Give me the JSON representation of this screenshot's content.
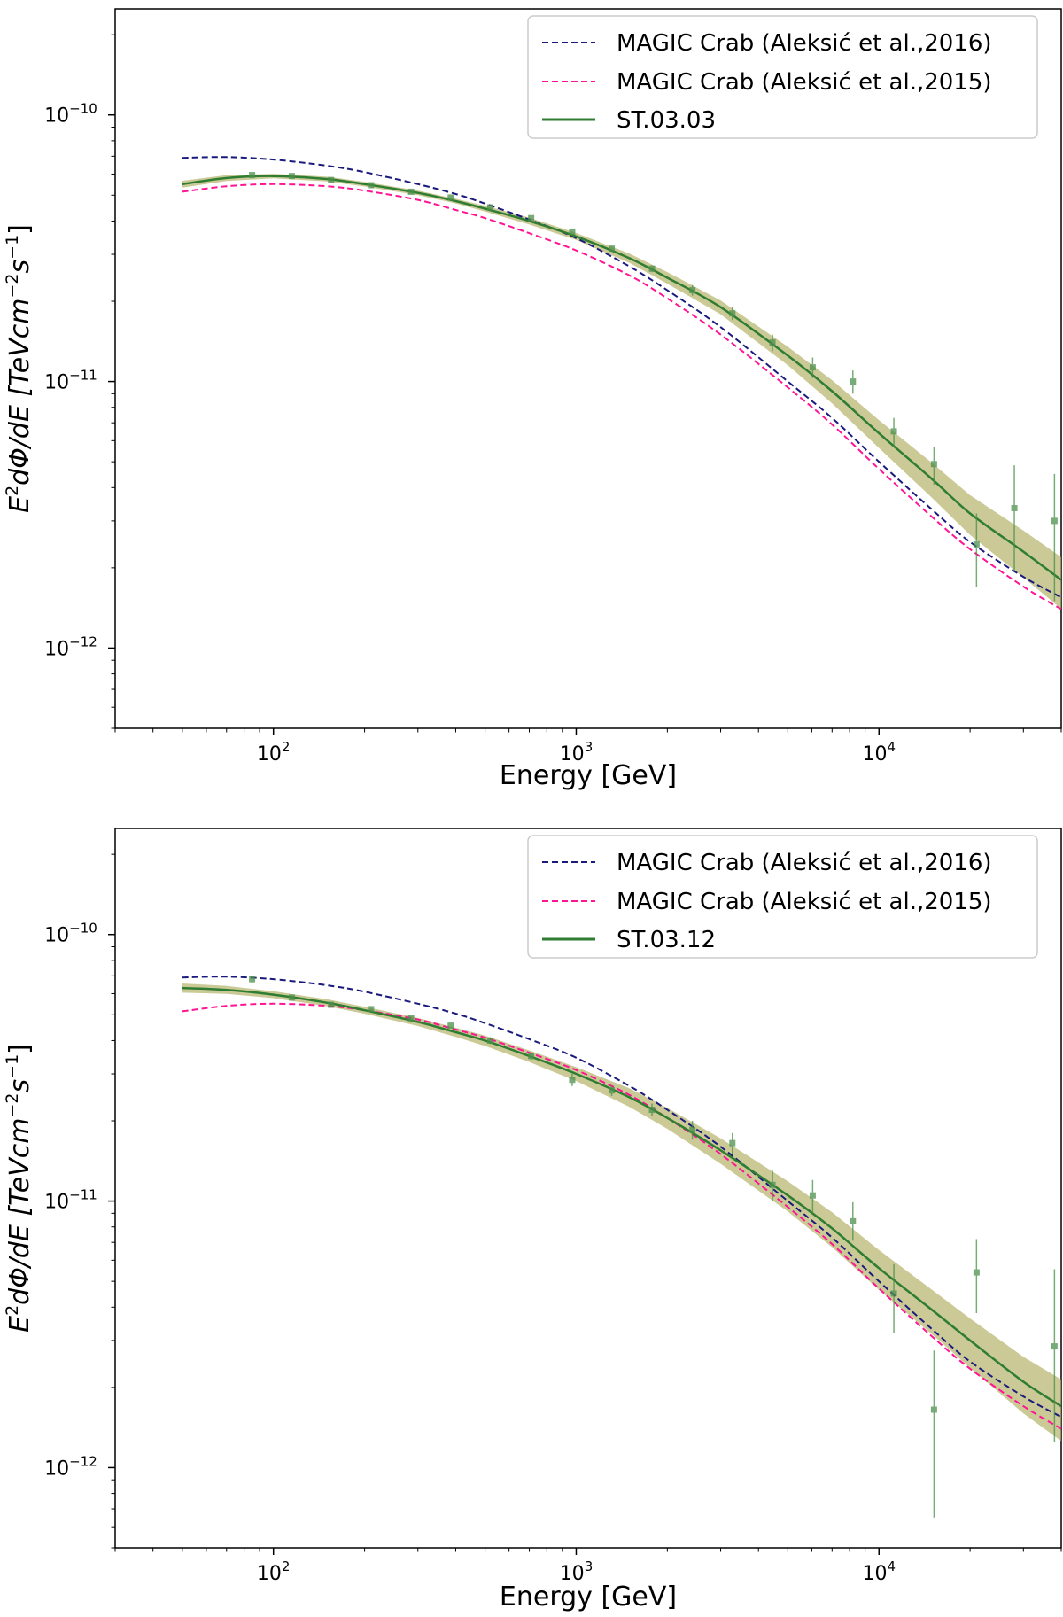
{
  "chart_data": [
    {
      "type": "line",
      "xscale": "log",
      "yscale": "log",
      "xlim": [
        30,
        40000
      ],
      "ylim": [
        5e-13,
        2.5e-10
      ],
      "xlabel": "Energy [GeV]",
      "ylabel_base": "dΦ/dE [TeVcm",
      "ylabel_parts": {
        "e": "E",
        "exp2": "2",
        "exp_m2": "−2",
        "s": "s",
        "exp_m1": "−1",
        "close": "]"
      },
      "x_ticks": [
        {
          "base": "10",
          "exp": "2",
          "value": 100
        },
        {
          "base": "10",
          "exp": "3",
          "value": 1000
        },
        {
          "base": "10",
          "exp": "4",
          "value": 10000
        }
      ],
      "y_ticks": [
        {
          "base": "10",
          "exp": "−10",
          "value": 1e-10
        },
        {
          "base": "10",
          "exp": "−11",
          "value": 1e-11
        },
        {
          "base": "10",
          "exp": "−12",
          "value": 1e-12
        }
      ],
      "legend": {
        "position": "top-right",
        "entries": [
          "MAGIC Crab (Aleksić et al.,2016)",
          "MAGIC Crab (Aleksić et al.,2015)",
          "ST.03.03"
        ]
      },
      "colors": {
        "magic2016": "#1a1a7e",
        "magic2015": "#ff1493",
        "model": "#2e7d32",
        "band": "#b5b36a",
        "points": "#4a8f4a"
      },
      "series": [
        {
          "name": "MAGIC Crab (Aleksić et al.,2016)",
          "style": "dashed",
          "color_key": "magic2016",
          "x": [
            50,
            70,
            100,
            150,
            200,
            300,
            400,
            500,
            700,
            1000,
            1500,
            2000,
            3000,
            5000,
            7000,
            10000,
            15000,
            20000,
            30000,
            40000
          ],
          "y": [
            6.9e-11,
            6.95e-11,
            6.8e-11,
            6.45e-11,
            6.1e-11,
            5.5e-11,
            5.05e-11,
            4.65e-11,
            4.05e-11,
            3.45e-11,
            2.7e-11,
            2.2e-11,
            1.6e-11,
            1e-11,
            7.3e-12,
            5e-12,
            3.3e-12,
            2.5e-12,
            1.85e-12,
            1.55e-12
          ]
        },
        {
          "name": "MAGIC Crab (Aleksić et al.,2015)",
          "style": "dashed",
          "color_key": "magic2015",
          "x": [
            50,
            70,
            100,
            150,
            200,
            300,
            400,
            500,
            700,
            1000,
            1500,
            2000,
            3000,
            5000,
            7000,
            10000,
            15000,
            20000,
            30000,
            40000
          ],
          "y": [
            5.15e-11,
            5.4e-11,
            5.5e-11,
            5.4e-11,
            5.2e-11,
            4.8e-11,
            4.4e-11,
            4.1e-11,
            3.6e-11,
            3.1e-11,
            2.5e-11,
            2.05e-11,
            1.5e-11,
            9.5e-12,
            6.9e-12,
            4.7e-12,
            3.1e-12,
            2.35e-12,
            1.7e-12,
            1.4e-12
          ]
        },
        {
          "name": "ST.03.03",
          "style": "solid",
          "color_key": "model",
          "x": [
            50,
            70,
            100,
            150,
            200,
            300,
            400,
            500,
            700,
            1000,
            1500,
            2000,
            3000,
            5000,
            7000,
            10000,
            15000,
            20000,
            30000,
            40000
          ],
          "y": [
            5.5e-11,
            5.8e-11,
            5.9e-11,
            5.75e-11,
            5.5e-11,
            5.1e-11,
            4.75e-11,
            4.45e-11,
            4e-11,
            3.5e-11,
            2.9e-11,
            2.45e-11,
            1.9e-11,
            1.25e-11,
            9.2e-12,
            6.4e-12,
            4.3e-12,
            3.2e-12,
            2.3e-12,
            1.8e-12
          ],
          "band_rel": [
            0.03,
            0.025,
            0.02,
            0.02,
            0.02,
            0.02,
            0.02,
            0.025,
            0.03,
            0.03,
            0.04,
            0.05,
            0.06,
            0.08,
            0.1,
            0.12,
            0.15,
            0.17,
            0.2,
            0.22
          ]
        }
      ],
      "points": [
        {
          "x": 85,
          "y": 5.95e-11,
          "yerr": [
            1e-12,
            1e-12
          ]
        },
        {
          "x": 115,
          "y": 5.9e-11,
          "yerr": [
            8e-13,
            8e-13
          ]
        },
        {
          "x": 155,
          "y": 5.7e-11,
          "yerr": [
            8e-13,
            8e-13
          ]
        },
        {
          "x": 210,
          "y": 5.45e-11,
          "yerr": [
            8e-13,
            8e-13
          ]
        },
        {
          "x": 285,
          "y": 5.15e-11,
          "yerr": [
            8e-13,
            8e-13
          ]
        },
        {
          "x": 385,
          "y": 4.9e-11,
          "yerr": [
            8e-13,
            8e-13
          ]
        },
        {
          "x": 520,
          "y": 4.5e-11,
          "yerr": [
            8e-13,
            8e-13
          ]
        },
        {
          "x": 710,
          "y": 4.1e-11,
          "yerr": [
            1e-12,
            1e-12
          ]
        },
        {
          "x": 970,
          "y": 3.65e-11,
          "yerr": [
            8e-13,
            8e-13
          ]
        },
        {
          "x": 1310,
          "y": 3.15e-11,
          "yerr": [
            8e-13,
            8e-13
          ]
        },
        {
          "x": 1780,
          "y": 2.65e-11,
          "yerr": [
            8e-13,
            8e-13
          ]
        },
        {
          "x": 2420,
          "y": 2.2e-11,
          "yerr": [
            1e-12,
            1e-12
          ]
        },
        {
          "x": 3280,
          "y": 1.8e-11,
          "yerr": [
            1e-12,
            1e-12
          ]
        },
        {
          "x": 4450,
          "y": 1.4e-11,
          "yerr": [
            1e-12,
            1e-12
          ]
        },
        {
          "x": 6040,
          "y": 1.13e-11,
          "yerr": [
            1e-12,
            1e-12
          ]
        },
        {
          "x": 8200,
          "y": 1e-11,
          "yerr": [
            1e-12,
            1e-12
          ]
        },
        {
          "x": 11200,
          "y": 6.5e-12,
          "yerr": [
            8e-13,
            8e-13
          ]
        },
        {
          "x": 15200,
          "y": 4.9e-12,
          "yerr": [
            8e-13,
            8e-13
          ]
        },
        {
          "x": 21000,
          "y": 2.45e-12,
          "yerr": [
            7.5e-13,
            7.5e-13
          ]
        },
        {
          "x": 28000,
          "y": 3.35e-12,
          "yerr": [
            1.4e-12,
            1.5e-12
          ]
        },
        {
          "x": 38000,
          "y": 3e-12,
          "yerr": [
            1.5e-12,
            1.5e-12
          ]
        }
      ]
    },
    {
      "type": "line",
      "xscale": "log",
      "yscale": "log",
      "xlim": [
        30,
        40000
      ],
      "ylim": [
        5e-13,
        2.5e-10
      ],
      "xlabel": "Energy [GeV]",
      "ylabel_base": "dΦ/dE [TeVcm",
      "ylabel_parts": {
        "e": "E",
        "exp2": "2",
        "exp_m2": "−2",
        "s": "s",
        "exp_m1": "−1",
        "close": "]"
      },
      "x_ticks": [
        {
          "base": "10",
          "exp": "2",
          "value": 100
        },
        {
          "base": "10",
          "exp": "3",
          "value": 1000
        },
        {
          "base": "10",
          "exp": "4",
          "value": 10000
        }
      ],
      "y_ticks": [
        {
          "base": "10",
          "exp": "−10",
          "value": 1e-10
        },
        {
          "base": "10",
          "exp": "−11",
          "value": 1e-11
        },
        {
          "base": "10",
          "exp": "−12",
          "value": 1e-12
        }
      ],
      "legend": {
        "position": "top-right",
        "entries": [
          "MAGIC Crab (Aleksić et al.,2016)",
          "MAGIC Crab (Aleksić et al.,2015)",
          "ST.03.12"
        ]
      },
      "colors": {
        "magic2016": "#1a1a7e",
        "magic2015": "#ff1493",
        "model": "#2e7d32",
        "band": "#b5b36a",
        "points": "#4a8f4a"
      },
      "series": [
        {
          "name": "MAGIC Crab (Aleksić et al.,2016)",
          "style": "dashed",
          "color_key": "magic2016",
          "x": [
            50,
            70,
            100,
            150,
            200,
            300,
            400,
            500,
            700,
            1000,
            1500,
            2000,
            3000,
            5000,
            7000,
            10000,
            15000,
            20000,
            30000,
            40000
          ],
          "y": [
            6.9e-11,
            6.95e-11,
            6.8e-11,
            6.45e-11,
            6.1e-11,
            5.5e-11,
            5.05e-11,
            4.65e-11,
            4.05e-11,
            3.45e-11,
            2.7e-11,
            2.2e-11,
            1.6e-11,
            1e-11,
            7.3e-12,
            5e-12,
            3.3e-12,
            2.5e-12,
            1.85e-12,
            1.55e-12
          ]
        },
        {
          "name": "MAGIC Crab (Aleksić et al.,2015)",
          "style": "dashed",
          "color_key": "magic2015",
          "x": [
            50,
            70,
            100,
            150,
            200,
            300,
            400,
            500,
            700,
            1000,
            1500,
            2000,
            3000,
            5000,
            7000,
            10000,
            15000,
            20000,
            30000,
            40000
          ],
          "y": [
            5.15e-11,
            5.4e-11,
            5.5e-11,
            5.4e-11,
            5.2e-11,
            4.8e-11,
            4.4e-11,
            4.1e-11,
            3.6e-11,
            3.1e-11,
            2.5e-11,
            2.05e-11,
            1.5e-11,
            9.5e-12,
            6.9e-12,
            4.7e-12,
            3.1e-12,
            2.35e-12,
            1.7e-12,
            1.4e-12
          ]
        },
        {
          "name": "ST.03.12",
          "style": "solid",
          "color_key": "model",
          "x": [
            50,
            70,
            100,
            150,
            200,
            300,
            400,
            500,
            700,
            1000,
            1500,
            2000,
            3000,
            5000,
            7000,
            10000,
            15000,
            20000,
            30000,
            40000
          ],
          "y": [
            6.3e-11,
            6.2e-11,
            5.95e-11,
            5.55e-11,
            5.2e-11,
            4.7e-11,
            4.3e-11,
            4e-11,
            3.5e-11,
            3e-11,
            2.45e-11,
            2.05e-11,
            1.55e-11,
            1.05e-11,
            7.9e-12,
            5.6e-12,
            3.9e-12,
            3e-12,
            2.1e-12,
            1.7e-12
          ],
          "band_rel": [
            0.04,
            0.035,
            0.03,
            0.03,
            0.03,
            0.035,
            0.04,
            0.045,
            0.05,
            0.06,
            0.08,
            0.09,
            0.11,
            0.13,
            0.15,
            0.17,
            0.19,
            0.21,
            0.24,
            0.26
          ]
        }
      ],
      "points": [
        {
          "x": 85,
          "y": 6.8e-11,
          "yerr": [
            2e-12,
            2e-12
          ]
        },
        {
          "x": 115,
          "y": 5.8e-11,
          "yerr": [
            1.5e-12,
            1.5e-12
          ]
        },
        {
          "x": 155,
          "y": 5.45e-11,
          "yerr": [
            1.2e-12,
            1.2e-12
          ]
        },
        {
          "x": 210,
          "y": 5.25e-11,
          "yerr": [
            1.2e-12,
            1.2e-12
          ]
        },
        {
          "x": 285,
          "y": 4.85e-11,
          "yerr": [
            1.2e-12,
            1.2e-12
          ]
        },
        {
          "x": 385,
          "y": 4.55e-11,
          "yerr": [
            1.2e-12,
            1.2e-12
          ]
        },
        {
          "x": 520,
          "y": 4e-11,
          "yerr": [
            1.2e-12,
            1.2e-12
          ]
        },
        {
          "x": 710,
          "y": 3.5e-11,
          "yerr": [
            1.2e-12,
            1.2e-12
          ]
        },
        {
          "x": 970,
          "y": 2.85e-11,
          "yerr": [
            1.5e-12,
            1.5e-12
          ]
        },
        {
          "x": 1310,
          "y": 2.6e-11,
          "yerr": [
            1.2e-12,
            1.2e-12
          ]
        },
        {
          "x": 1780,
          "y": 2.2e-11,
          "yerr": [
            1.2e-12,
            1.2e-12
          ]
        },
        {
          "x": 2420,
          "y": 1.85e-11,
          "yerr": [
            1.5e-12,
            1.5e-12
          ]
        },
        {
          "x": 3280,
          "y": 1.65e-11,
          "yerr": [
            1.5e-12,
            1.5e-12
          ]
        },
        {
          "x": 4450,
          "y": 1.15e-11,
          "yerr": [
            1.5e-12,
            1.5e-12
          ]
        },
        {
          "x": 6040,
          "y": 1.05e-11,
          "yerr": [
            1.5e-12,
            1.5e-12
          ]
        },
        {
          "x": 8200,
          "y": 8.4e-12,
          "yerr": [
            1.3e-12,
            1.5e-12
          ]
        },
        {
          "x": 11200,
          "y": 4.5e-12,
          "yerr": [
            1.3e-12,
            1.3e-12
          ]
        },
        {
          "x": 15200,
          "y": 1.65e-12,
          "yerr": [
            1e-12,
            1.1e-12
          ]
        },
        {
          "x": 21000,
          "y": 5.4e-12,
          "yerr": [
            1.6e-12,
            1.8e-12
          ]
        },
        {
          "x": 38000,
          "y": 2.85e-12,
          "yerr": [
            1.6e-12,
            2.7e-12
          ]
        }
      ]
    }
  ]
}
